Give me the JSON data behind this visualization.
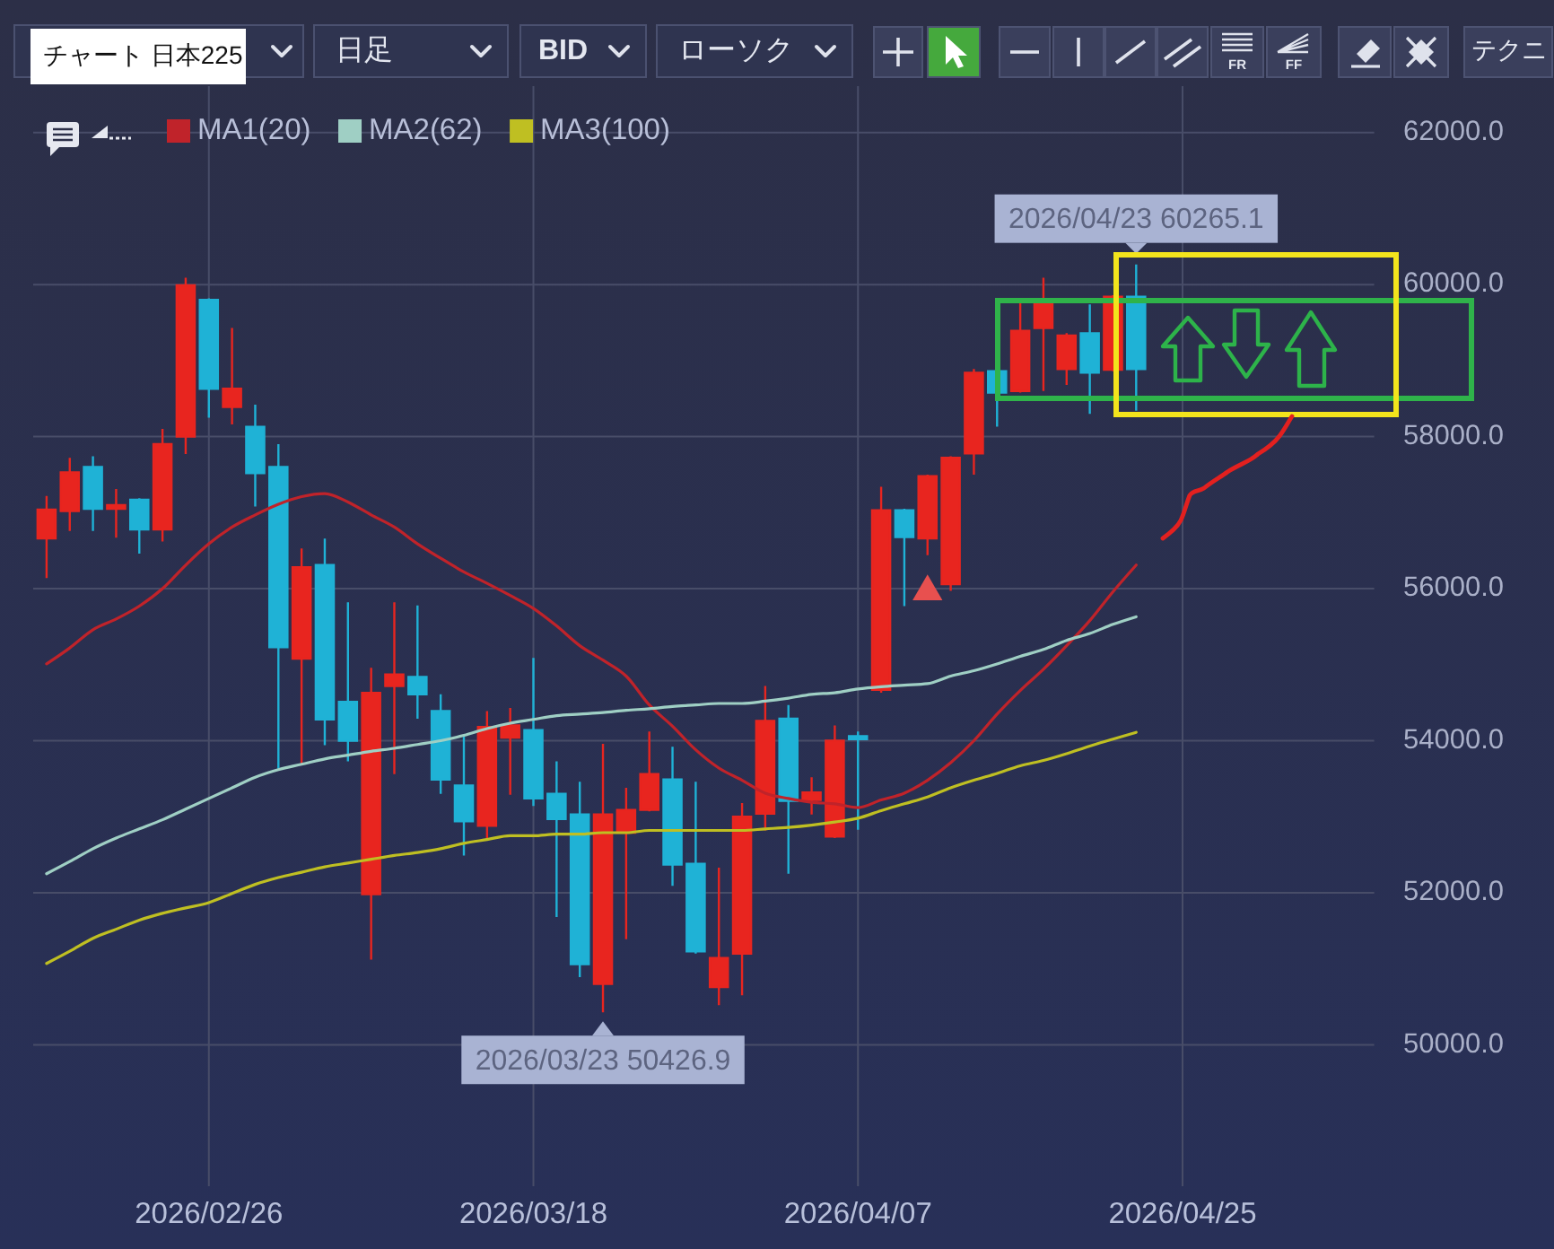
{
  "chart_data": {
    "type": "candlestick",
    "title": "チャート 日本225",
    "categories": [
      null,
      null,
      null,
      null,
      null,
      null,
      null,
      "2026/02/26",
      null,
      null,
      null,
      null,
      null,
      null,
      null,
      null,
      null,
      null,
      null,
      null,
      null,
      "2026/03/18",
      null,
      null,
      null,
      null,
      null,
      null,
      null,
      null,
      null,
      null,
      null,
      null,
      null,
      "2026/04/07",
      null,
      null,
      null,
      null,
      null,
      null,
      null,
      null,
      null,
      null,
      null,
      null,
      null,
      "2026/04/25",
      null,
      null,
      null,
      null,
      null,
      null,
      null,
      null
    ],
    "ohlc": [
      [
        56660,
        57220,
        56140,
        57040
      ],
      [
        57020,
        57720,
        56760,
        57530
      ],
      [
        57600,
        57740,
        56760,
        57050
      ],
      [
        57050,
        57310,
        56670,
        57100
      ],
      [
        57170,
        57190,
        56460,
        56780
      ],
      [
        56780,
        58100,
        56620,
        57900
      ],
      [
        58000,
        60090,
        57770,
        59990
      ],
      [
        59800,
        59820,
        58250,
        58630
      ],
      [
        58390,
        59430,
        58160,
        58630
      ],
      [
        58130,
        58420,
        57080,
        57520
      ],
      [
        57600,
        57900,
        53630,
        55230
      ],
      [
        55080,
        56530,
        53700,
        56280
      ],
      [
        56310,
        56660,
        53940,
        54280
      ],
      [
        54510,
        55820,
        53730,
        54000
      ],
      [
        51980,
        54960,
        51120,
        54630
      ],
      [
        54720,
        55820,
        53560,
        54870
      ],
      [
        54840,
        55780,
        54290,
        54610
      ],
      [
        54390,
        54610,
        53300,
        53490
      ],
      [
        53410,
        54080,
        52490,
        52940
      ],
      [
        52880,
        54390,
        52690,
        54180
      ],
      [
        54040,
        54430,
        53290,
        54200
      ],
      [
        54140,
        55090,
        53140,
        53240
      ],
      [
        53300,
        53730,
        51680,
        52970
      ],
      [
        53030,
        53460,
        50890,
        51060
      ],
      [
        50800,
        53960,
        50426.9,
        53030
      ],
      [
        52790,
        53380,
        51390,
        53090
      ],
      [
        53090,
        54120,
        53070,
        53560
      ],
      [
        53490,
        53920,
        52090,
        52370
      ],
      [
        52380,
        53460,
        51200,
        51230
      ],
      [
        50760,
        52330,
        50520,
        51140
      ],
      [
        51200,
        53180,
        50650,
        53000
      ],
      [
        53040,
        54720,
        52820,
        54260
      ],
      [
        54290,
        54470,
        52250,
        53210
      ],
      [
        53220,
        53520,
        53030,
        53320
      ],
      [
        52740,
        54200,
        52720,
        54000
      ],
      [
        54060,
        54120,
        52830,
        54020
      ],
      [
        54670,
        57340,
        54630,
        57030
      ],
      [
        57030,
        57050,
        55770,
        56680
      ],
      [
        56660,
        57500,
        56440,
        57480
      ],
      [
        56060,
        57740,
        55970,
        57720
      ],
      [
        57780,
        58890,
        57500,
        58840
      ],
      [
        58860,
        58890,
        58130,
        58580
      ],
      [
        58600,
        59780,
        58580,
        59390
      ],
      [
        59430,
        60090,
        58600,
        59780
      ],
      [
        58890,
        59360,
        58680,
        59330
      ],
      [
        59360,
        59740,
        58300,
        58840
      ],
      [
        58880,
        59860,
        58860,
        59840
      ],
      [
        59840,
        60265.1,
        58340,
        58890
      ],
      null,
      null,
      null,
      null,
      null,
      null,
      null,
      null,
      null,
      null
    ],
    "colors": [
      "#e8251f",
      "#e8251f",
      "#1fb2d6",
      "#e8251f",
      "#1fb2d6",
      "#e8251f",
      "#e8251f",
      "#1fb2d6",
      "#e8251f",
      "#1fb2d6",
      "#1fb2d6",
      "#e8251f",
      "#1fb2d6",
      "#1fb2d6",
      "#e8251f",
      "#e8251f",
      "#1fb2d6",
      "#1fb2d6",
      "#1fb2d6",
      "#e8251f",
      "#e8251f",
      "#1fb2d6",
      "#1fb2d6",
      "#1fb2d6",
      "#e8251f",
      "#e8251f",
      "#e8251f",
      "#1fb2d6",
      "#1fb2d6",
      "#e8251f",
      "#e8251f",
      "#e8251f",
      "#1fb2d6",
      "#e8251f",
      "#e8251f",
      "#1fb2d6",
      "#e8251f",
      "#1fb2d6",
      "#e8251f",
      "#e8251f",
      "#e8251f",
      "#1fb2d6",
      "#e8251f",
      "#e8251f",
      "#e8251f",
      "#1fb2d6",
      "#e8251f",
      "#1fb2d6",
      null,
      null,
      null,
      null,
      null,
      null,
      null,
      null,
      null,
      null
    ],
    "series": [
      {
        "name": "MA1(20)",
        "type": "line",
        "color": "#c0232a",
        "values": [
          55010,
          55220,
          55460,
          55600,
          55770,
          56000,
          56310,
          56590,
          56810,
          56970,
          57110,
          57210,
          57250,
          57140,
          56970,
          56810,
          56590,
          56400,
          56220,
          56070,
          55910,
          55740,
          55510,
          55250,
          55060,
          54850,
          54470,
          54190,
          53880,
          53640,
          53480,
          53310,
          53240,
          53190,
          53170,
          53120,
          53220,
          53310,
          53480,
          53710,
          54000,
          54350,
          54660,
          54940,
          55250,
          55580,
          55960,
          56310,
          null,
          null,
          null,
          null,
          null,
          null,
          null,
          null,
          null,
          null
        ]
      },
      {
        "name": "MA2(62)",
        "type": "line",
        "color": "#9fcfc4",
        "values": [
          52250,
          52410,
          52580,
          52720,
          52840,
          52960,
          53100,
          53240,
          53380,
          53520,
          53620,
          53690,
          53760,
          53810,
          53860,
          53900,
          53950,
          54000,
          54070,
          54160,
          54230,
          54280,
          54330,
          54350,
          54370,
          54400,
          54420,
          54450,
          54470,
          54490,
          54490,
          54520,
          54560,
          54610,
          54630,
          54680,
          54710,
          54730,
          54750,
          54850,
          54920,
          55010,
          55110,
          55200,
          55320,
          55410,
          55530,
          55630,
          null,
          null,
          null,
          null,
          null,
          null,
          null,
          null,
          null,
          null
        ]
      },
      {
        "name": "MA3(100)",
        "type": "line",
        "color": "#bfbf22",
        "values": [
          51070,
          51230,
          51400,
          51520,
          51640,
          51730,
          51800,
          51870,
          51990,
          52110,
          52200,
          52270,
          52340,
          52390,
          52440,
          52490,
          52530,
          52580,
          52650,
          52700,
          52750,
          52750,
          52770,
          52770,
          52790,
          52790,
          52820,
          52820,
          52820,
          52820,
          52820,
          52840,
          52860,
          52890,
          52930,
          52980,
          53080,
          53170,
          53260,
          53380,
          53480,
          53570,
          53670,
          53740,
          53830,
          53930,
          54020,
          54110,
          null,
          null,
          null,
          null,
          null,
          null,
          null,
          null,
          null,
          null
        ]
      },
      {
        "type": "scatter",
        "marker": "triangle",
        "color": "#e8504f",
        "values": [
          null,
          null,
          null,
          null,
          null,
          null,
          null,
          null,
          null,
          null,
          null,
          null,
          null,
          null,
          null,
          null,
          null,
          null,
          null,
          null,
          null,
          null,
          null,
          null,
          null,
          null,
          null,
          null,
          null,
          null,
          null,
          null,
          null,
          null,
          null,
          null,
          null,
          null,
          55960,
          null,
          null,
          null,
          null,
          null,
          null,
          null,
          null,
          null,
          null,
          null,
          null,
          null,
          null,
          null,
          null,
          null,
          null,
          null
        ]
      }
    ],
    "ylim": [
      48140,
      62610
    ],
    "yticks": [
      {
        "value": 50000,
        "label": "50000.0"
      },
      {
        "value": 52000,
        "label": "52000.0"
      },
      {
        "value": 54000,
        "label": "54000.0"
      },
      {
        "value": 56000,
        "label": "56000.0"
      },
      {
        "value": 58000,
        "label": "58000.0"
      },
      {
        "value": 60000,
        "label": "60000.0"
      },
      {
        "value": 62000,
        "label": "62000.0"
      }
    ],
    "grid": true,
    "legend": "top left",
    "annotations": [
      "日足",
      "BID",
      "ローソク",
      "FR",
      "FF",
      "テクニ",
      {
        "text": "2026/04/23 60265.1",
        "y": 60265.1
      },
      {
        "text": "2026/03/23 50426.9",
        "y": 50426.9
      }
    ]
  }
}
